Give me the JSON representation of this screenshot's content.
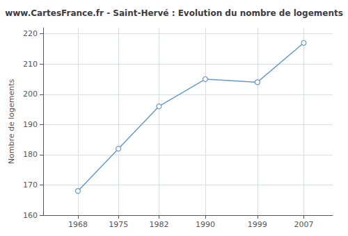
{
  "chart_data": {
    "type": "line",
    "title": "www.CartesFrance.fr - Saint-Hervé : Evolution du nombre de logements",
    "ylabel": "Nombre de logements",
    "x": [
      1968,
      1975,
      1982,
      1990,
      1999,
      2007
    ],
    "values": [
      168,
      182,
      196,
      205,
      204,
      217
    ],
    "xlim": [
      1962,
      2012
    ],
    "xticks": [
      1968,
      1975,
      1982,
      1990,
      1999,
      2007
    ],
    "ylim": [
      160,
      222
    ],
    "yticks": [
      160,
      170,
      180,
      190,
      200,
      210,
      220
    ],
    "color": "#6699cc",
    "marker": "circle",
    "grid": true
  }
}
